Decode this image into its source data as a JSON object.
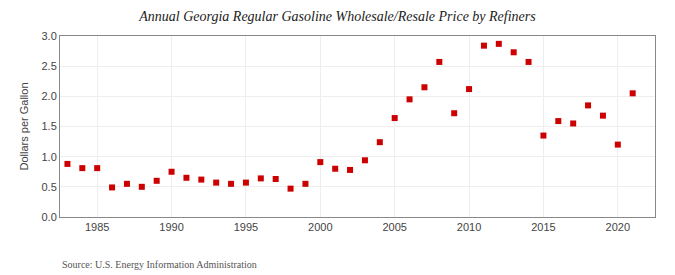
{
  "chart_data": {
    "type": "scatter",
    "title": "Annual Georgia Regular Gasoline Wholesale/Resale Price by Refiners",
    "y_label": "Dollars per Gallon",
    "annotations": [
      "Source: U.S. Energy Information Administration"
    ],
    "x": [
      1983,
      1984,
      1985,
      1986,
      1987,
      1988,
      1989,
      1990,
      1991,
      1992,
      1993,
      1994,
      1995,
      1996,
      1997,
      1998,
      1999,
      2000,
      2001,
      2002,
      2003,
      2004,
      2005,
      2006,
      2007,
      2008,
      2009,
      2010,
      2011,
      2012,
      2013,
      2014,
      2015,
      2016,
      2017,
      2018,
      2019,
      2020,
      2021
    ],
    "values": [
      0.88,
      0.81,
      0.81,
      0.49,
      0.55,
      0.5,
      0.6,
      0.75,
      0.65,
      0.62,
      0.57,
      0.55,
      0.57,
      0.64,
      0.63,
      0.47,
      0.55,
      0.91,
      0.8,
      0.78,
      0.94,
      1.24,
      1.64,
      1.95,
      2.15,
      2.57,
      1.72,
      2.12,
      2.84,
      2.87,
      2.73,
      2.57,
      1.35,
      1.59,
      1.55,
      1.85,
      1.68,
      1.2,
      2.05
    ],
    "color": "#cc0000",
    "marker": "square",
    "xlim": [
      1982.5,
      2022.5
    ],
    "xticks": [
      1985,
      1990,
      1995,
      2000,
      2005,
      2010,
      2015,
      2020
    ],
    "ylim": [
      0.0,
      3.0
    ],
    "yticks": [
      {
        "value": 0.0,
        "label": "0.0"
      },
      0.5,
      {
        "value": 1.0,
        "label": "1.0"
      },
      1.5,
      {
        "value": 2.0,
        "label": "2.0"
      },
      2.5,
      {
        "value": 3.0,
        "label": "3.0"
      }
    ],
    "grid": true
  }
}
